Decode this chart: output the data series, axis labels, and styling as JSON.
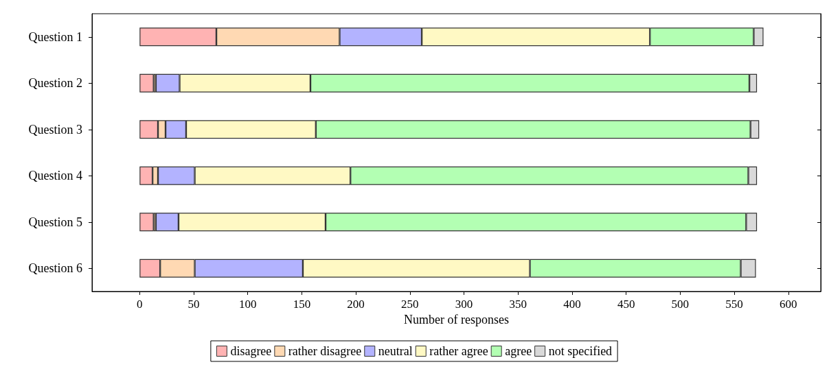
{
  "chart_data": {
    "type": "bar",
    "orientation": "horizontal",
    "stacked": true,
    "xlabel": "Number of responses",
    "categories": [
      "Question 1",
      "Question 2",
      "Question 3",
      "Question 4",
      "Question 5",
      "Question 6"
    ],
    "series": [
      {
        "name": "disagree",
        "color": "#ffb3b3",
        "values": [
          71,
          13,
          17,
          12,
          13,
          19
        ]
      },
      {
        "name": "rather disagree",
        "color": "#ffd9b3",
        "values": [
          114,
          2,
          7,
          5,
          2,
          32
        ]
      },
      {
        "name": "neutral",
        "color": "#b3b3ff",
        "values": [
          76,
          22,
          19,
          34,
          21,
          100
        ]
      },
      {
        "name": "rather agree",
        "color": "#fff9c4",
        "values": [
          211,
          121,
          120,
          144,
          136,
          210
        ]
      },
      {
        "name": "agree",
        "color": "#b3ffb3",
        "values": [
          96,
          406,
          402,
          368,
          389,
          195
        ]
      },
      {
        "name": "not specified",
        "color": "#d9d9d9",
        "values": [
          9,
          7,
          8,
          8,
          10,
          14
        ]
      }
    ],
    "xlim": [
      -44,
      630
    ],
    "xticks": [
      0,
      50,
      100,
      150,
      200,
      250,
      300,
      350,
      400,
      450,
      500,
      550,
      600
    ],
    "grid": false,
    "legend": "bottom"
  }
}
